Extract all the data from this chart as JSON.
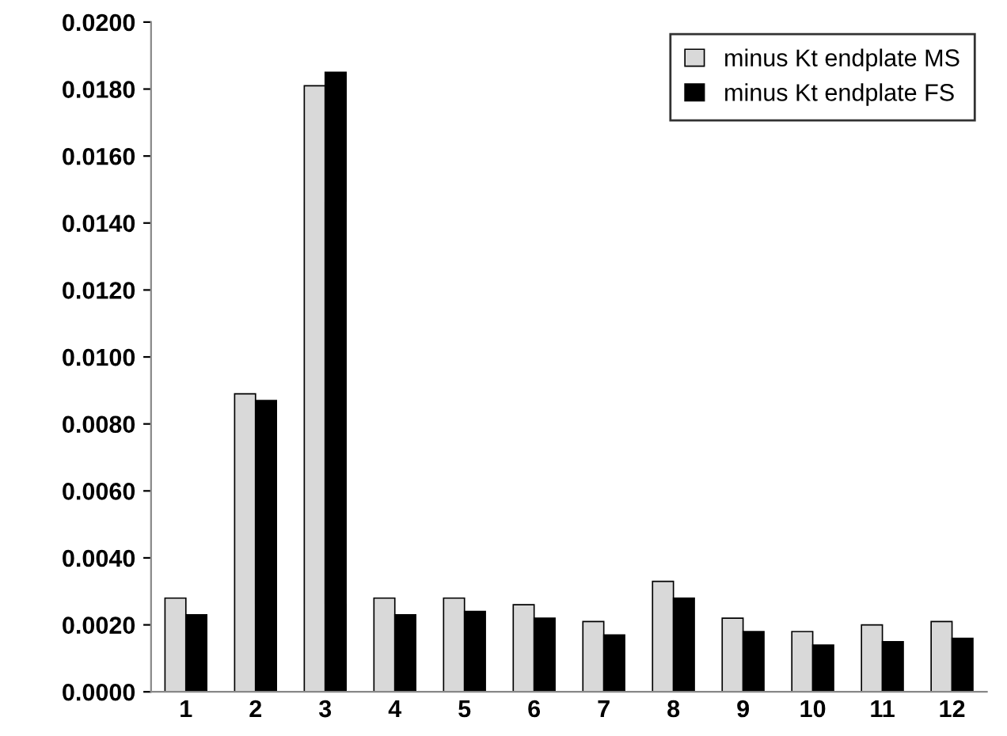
{
  "chart_data": {
    "type": "bar",
    "categories": [
      "1",
      "2",
      "3",
      "4",
      "5",
      "6",
      "7",
      "8",
      "9",
      "10",
      "11",
      "12"
    ],
    "series": [
      {
        "name": "minus Kt endplate MS",
        "color": "#d9d9d9",
        "values": [
          0.0028,
          0.0089,
          0.0181,
          0.0028,
          0.0028,
          0.0026,
          0.0021,
          0.0033,
          0.0022,
          0.0018,
          0.002,
          0.0021
        ]
      },
      {
        "name": "minus Kt endplate FS",
        "color": "#000000",
        "values": [
          0.0023,
          0.0087,
          0.0185,
          0.0023,
          0.0024,
          0.0022,
          0.0017,
          0.0028,
          0.0018,
          0.0014,
          0.0015,
          0.0016
        ]
      }
    ],
    "ylim": [
      0,
      0.02
    ],
    "yticks": [
      {
        "value": 0,
        "label": "0.0000"
      },
      {
        "value": 0.002,
        "label": "0.0020"
      },
      {
        "value": 0.004,
        "label": "0.0040"
      },
      {
        "value": 0.006,
        "label": "0.0060"
      },
      {
        "value": 0.008,
        "label": "0.0080"
      },
      {
        "value": 0.01,
        "label": "0.0100"
      },
      {
        "value": 0.012,
        "label": "0.0120"
      },
      {
        "value": 0.014,
        "label": "0.0140"
      },
      {
        "value": 0.016,
        "label": "0.0160"
      },
      {
        "value": 0.018,
        "label": "0.0180"
      },
      {
        "value": 0.02,
        "label": "0.0200"
      }
    ],
    "grid": false,
    "legend": "top right"
  }
}
